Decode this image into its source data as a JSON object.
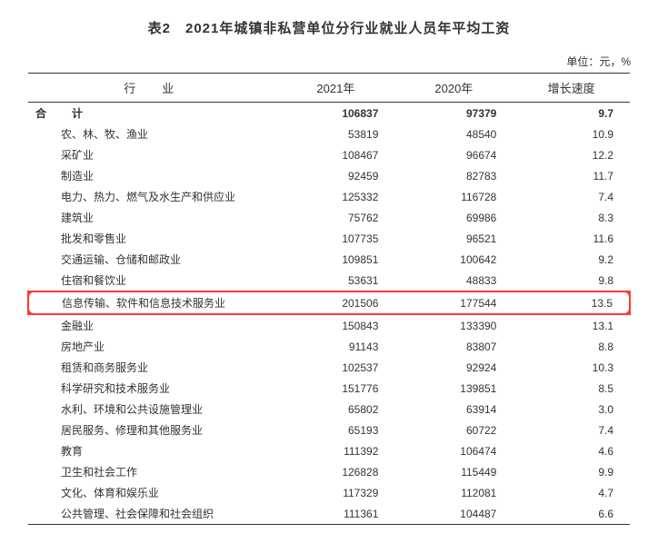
{
  "title": "表2　2021年城镇非私营单位分行业就业人员年平均工资",
  "unit": "单位：元，%",
  "headers": {
    "industry": "行　业",
    "y2021": "2021年",
    "y2020": "2020年",
    "growth": "增长速度"
  },
  "total_row": {
    "label": "合　计",
    "y2021": "106837",
    "y2020": "97379",
    "growth": "9.7"
  },
  "rows": [
    {
      "label": "农、林、牧、渔业",
      "y2021": "53819",
      "y2020": "48540",
      "growth": "10.9",
      "highlight": false
    },
    {
      "label": "采矿业",
      "y2021": "108467",
      "y2020": "96674",
      "growth": "12.2",
      "highlight": false
    },
    {
      "label": "制造业",
      "y2021": "92459",
      "y2020": "82783",
      "growth": "11.7",
      "highlight": false
    },
    {
      "label": "电力、热力、燃气及水生产和供应业",
      "y2021": "125332",
      "y2020": "116728",
      "growth": "7.4",
      "highlight": false
    },
    {
      "label": "建筑业",
      "y2021": "75762",
      "y2020": "69986",
      "growth": "8.3",
      "highlight": false
    },
    {
      "label": "批发和零售业",
      "y2021": "107735",
      "y2020": "96521",
      "growth": "11.6",
      "highlight": false
    },
    {
      "label": "交通运输、仓储和邮政业",
      "y2021": "109851",
      "y2020": "100642",
      "growth": "9.2",
      "highlight": false
    },
    {
      "label": "住宿和餐饮业",
      "y2021": "53631",
      "y2020": "48833",
      "growth": "9.8",
      "highlight": false
    },
    {
      "label": "信息传输、软件和信息技术服务业",
      "y2021": "201506",
      "y2020": "177544",
      "growth": "13.5",
      "highlight": true
    },
    {
      "label": "金融业",
      "y2021": "150843",
      "y2020": "133390",
      "growth": "13.1",
      "highlight": false
    },
    {
      "label": "房地产业",
      "y2021": "91143",
      "y2020": "83807",
      "growth": "8.8",
      "highlight": false
    },
    {
      "label": "租赁和商务服务业",
      "y2021": "102537",
      "y2020": "92924",
      "growth": "10.3",
      "highlight": false
    },
    {
      "label": "科学研究和技术服务业",
      "y2021": "151776",
      "y2020": "139851",
      "growth": "8.5",
      "highlight": false
    },
    {
      "label": "水利、环境和公共设施管理业",
      "y2021": "65802",
      "y2020": "63914",
      "growth": "3.0",
      "highlight": false
    },
    {
      "label": "居民服务、修理和其他服务业",
      "y2021": "65193",
      "y2020": "60722",
      "growth": "7.4",
      "highlight": false
    },
    {
      "label": "教育",
      "y2021": "111392",
      "y2020": "106474",
      "growth": "4.6",
      "highlight": false
    },
    {
      "label": "卫生和社会工作",
      "y2021": "126828",
      "y2020": "115449",
      "growth": "9.9",
      "highlight": false
    },
    {
      "label": "文化、体育和娱乐业",
      "y2021": "117329",
      "y2020": "112081",
      "growth": "4.7",
      "highlight": false
    },
    {
      "label": "公共管理、社会保障和社会组织",
      "y2021": "111361",
      "y2020": "104487",
      "growth": "6.6",
      "highlight": false
    }
  ],
  "highlight_color": "#ff3b30",
  "border_color": "#333333",
  "background_color": "#ffffff"
}
